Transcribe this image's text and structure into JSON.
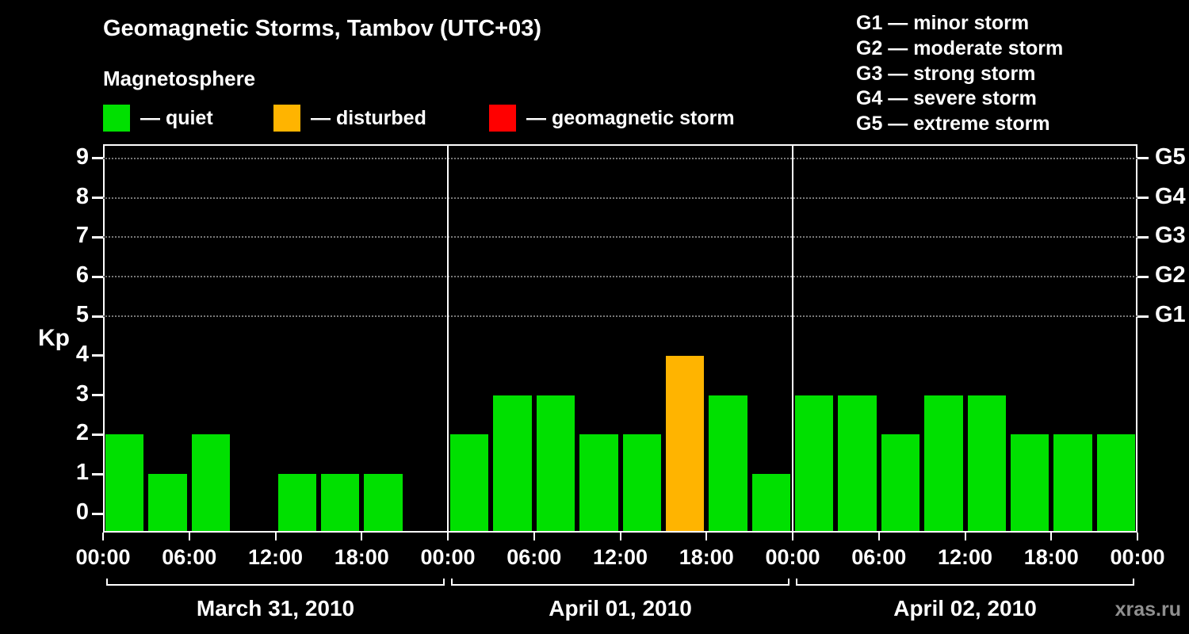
{
  "title": "Geomagnetic Storms, Tambov (UTC+03)",
  "subtitle": "Magnetosphere",
  "legend": [
    {
      "key": "quiet",
      "label": "— quiet",
      "color": "#00e000"
    },
    {
      "key": "disturbed",
      "label": "— disturbed",
      "color": "#ffb400"
    },
    {
      "key": "storm",
      "label": "— geomagnetic storm",
      "color": "#ff0000"
    }
  ],
  "storm_scale_legend": [
    "G1 — minor storm",
    "G2 — moderate storm",
    "G3 — strong storm",
    "G4 — severe storm",
    "G5 — extreme storm"
  ],
  "watermark": "xras.ru",
  "chart_data": {
    "type": "bar",
    "title": "Geomagnetic Storms, Tambov (UTC+03)",
    "ylabel": "Kp",
    "ylim": [
      0,
      9
    ],
    "yticks": [
      0,
      1,
      2,
      3,
      4,
      5,
      6,
      7,
      8,
      9
    ],
    "gridlines": [
      5,
      6,
      7,
      8,
      9
    ],
    "right_axis_ticks": [
      {
        "value": 5,
        "label": "G1"
      },
      {
        "value": 6,
        "label": "G2"
      },
      {
        "value": 7,
        "label": "G3"
      },
      {
        "value": 8,
        "label": "G4"
      },
      {
        "value": 9,
        "label": "G5"
      }
    ],
    "interval_hours": 3,
    "xtick_labels": [
      "00:00",
      "06:00",
      "12:00",
      "18:00",
      "00:00",
      "06:00",
      "12:00",
      "18:00",
      "00:00",
      "06:00",
      "12:00",
      "18:00",
      "00:00"
    ],
    "color_rule": {
      "storm_min": 5,
      "disturbed_min": 4
    },
    "days": [
      {
        "date": "March 31, 2010",
        "values": [
          2,
          1,
          2,
          0,
          1,
          1,
          1,
          0
        ]
      },
      {
        "date": "April 01, 2010",
        "values": [
          2,
          3,
          3,
          2,
          2,
          4,
          3,
          1
        ]
      },
      {
        "date": "April 02, 2010",
        "values": [
          3,
          3,
          2,
          3,
          3,
          2,
          2,
          2
        ]
      }
    ]
  }
}
